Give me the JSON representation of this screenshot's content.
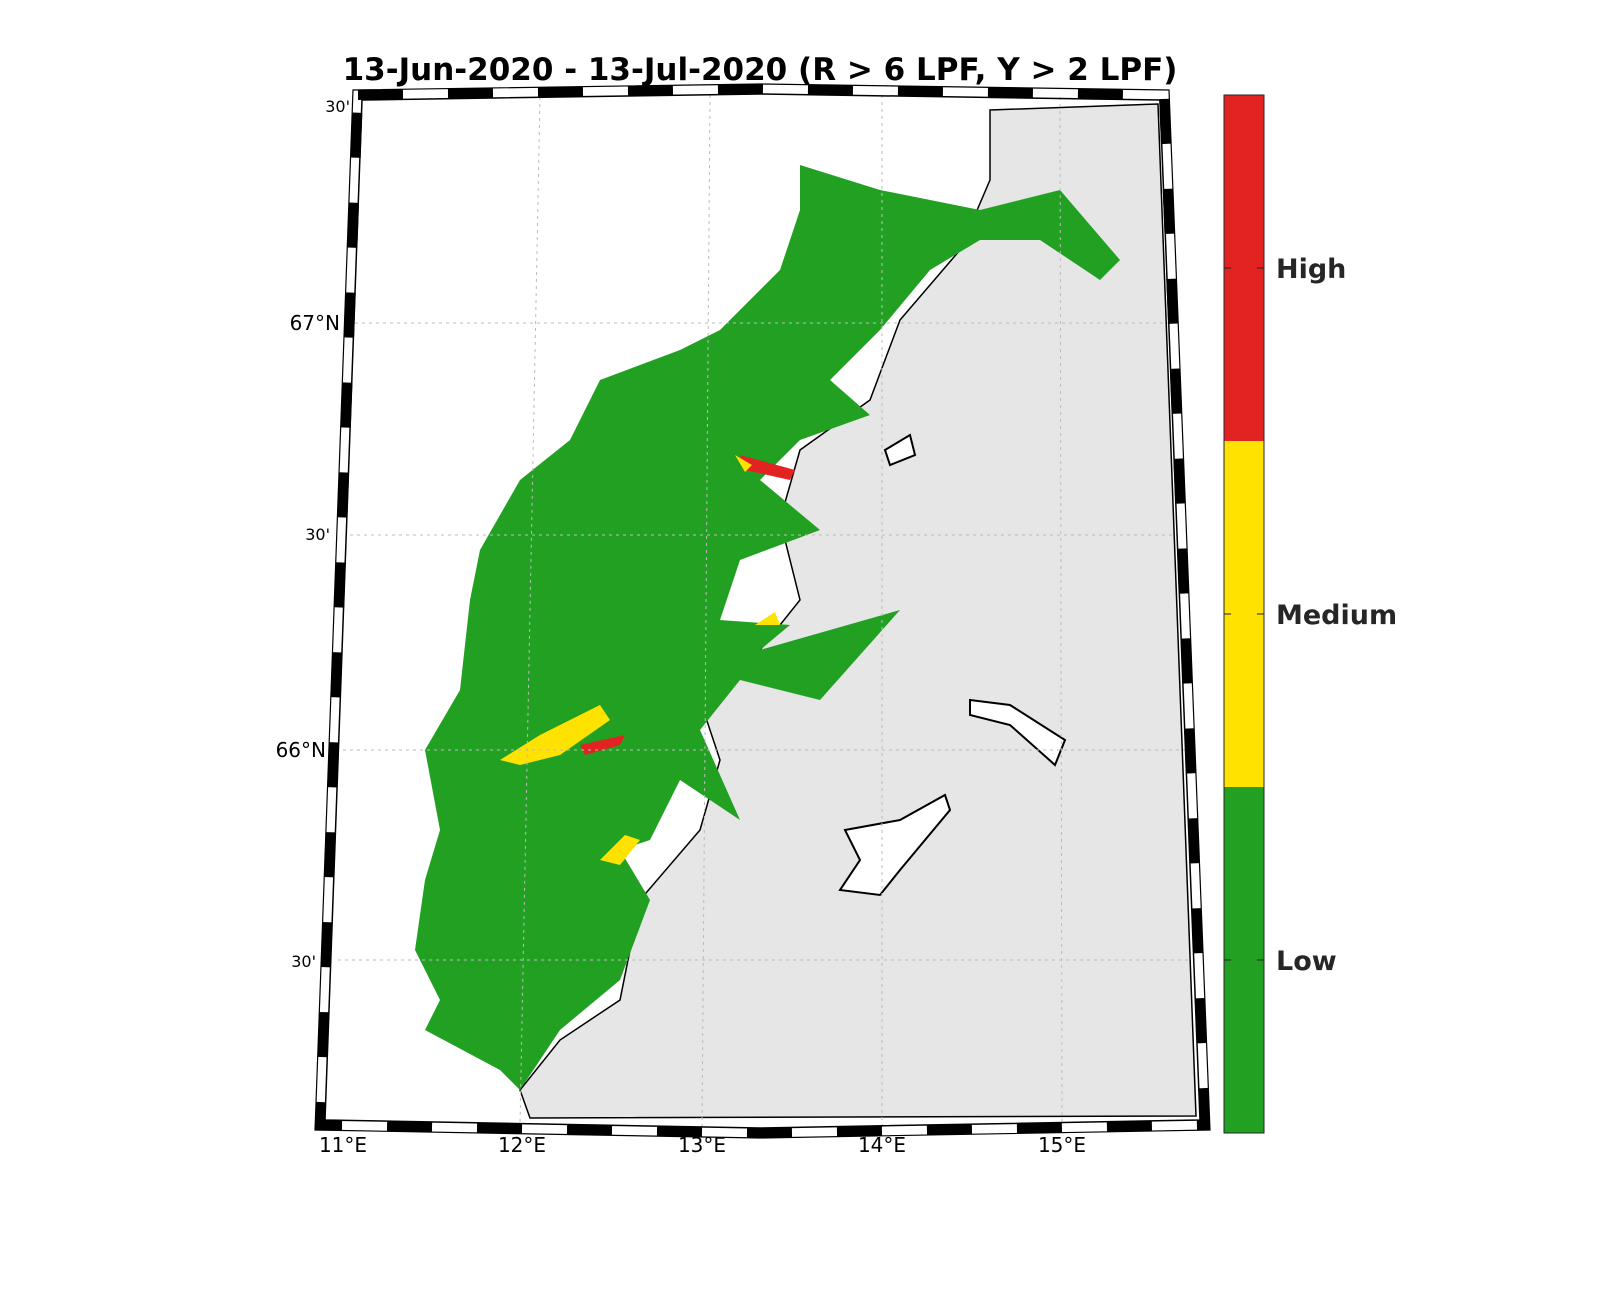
{
  "title": "13-Jun-2020  - 13-Jul-2020  (R > 6 LPF, Y > 2 LPF)",
  "map": {
    "lon_labels": [
      "11°E",
      "12°E",
      "13°E",
      "14°E",
      "15°E"
    ],
    "lat_labels": [
      "30'",
      "67°N",
      "30'",
      "66°N",
      "30'"
    ]
  },
  "legend": {
    "classes": [
      {
        "label": "High",
        "color": "#e32322"
      },
      {
        "label": "Medium",
        "color": "#ffe200"
      },
      {
        "label": "Low",
        "color": "#22a022"
      }
    ]
  }
}
